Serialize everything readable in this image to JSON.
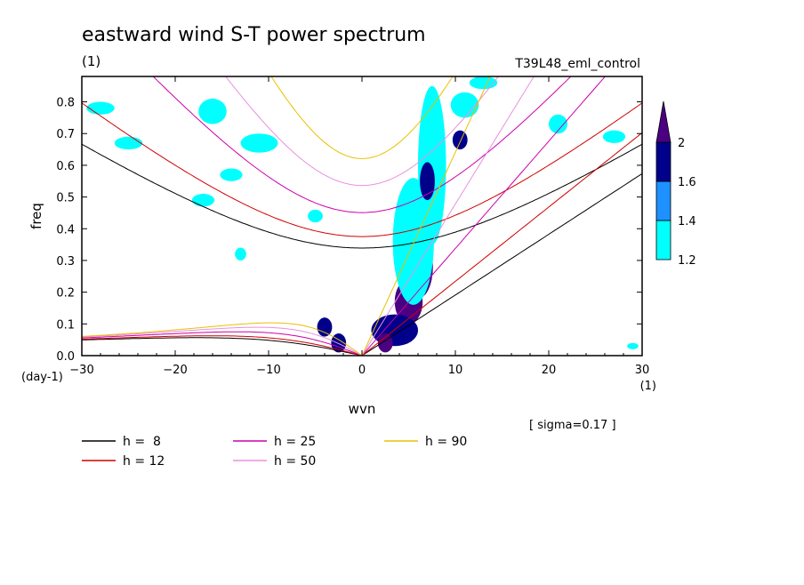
{
  "chart_data": {
    "type": "contour",
    "title": "eastward wind S-T power spectrum",
    "unit_label": "(1)",
    "run_label": "T39L48_eml_control",
    "xlabel": "wvn",
    "ylabel": "freq",
    "x_unit": "(1)",
    "y_unit": "(day-1)",
    "xlim": [
      -30,
      30
    ],
    "ylim": [
      0,
      0.88
    ],
    "x_ticks": [
      -30,
      -20,
      -10,
      0,
      10,
      20,
      30
    ],
    "x_tick_labels": [
      "−30",
      "−20",
      "−10",
      "0",
      "10",
      "20",
      "30"
    ],
    "y_ticks": [
      0,
      0.1,
      0.2,
      0.3,
      0.4,
      0.5,
      0.6,
      0.7,
      0.8
    ],
    "y_tick_labels": [
      "0.0",
      "0.1",
      "0.2",
      "0.3",
      "0.4",
      "0.5",
      "0.6",
      "0.7",
      "0.8"
    ],
    "sigma_note": "[ sigma=0.17 ]",
    "colorbar": {
      "levels": [
        1.2,
        1.4,
        1.6,
        2
      ],
      "level_labels": [
        "1.2",
        "1.4",
        "1.6",
        "2"
      ],
      "colors": [
        "#00ffff",
        "#1e90ff",
        "#00008b",
        "#4b0082"
      ]
    },
    "dispersion_curves": [
      {
        "label": "h =  8",
        "h": 8,
        "color": "#000000"
      },
      {
        "label": "h = 12",
        "h": 12,
        "color": "#d00000"
      },
      {
        "label": "h = 25",
        "h": 25,
        "color": "#cc00aa"
      },
      {
        "label": "h = 50",
        "h": 50,
        "color": "#e890e0"
      },
      {
        "label": "h = 90",
        "h": 90,
        "color": "#e8c000"
      }
    ],
    "spectral_peaks": [
      {
        "wvn": 5.0,
        "freq": 0.17,
        "rx": 1.5,
        "ry": 0.07,
        "level": 2
      },
      {
        "wvn": 6.0,
        "freq": 0.28,
        "rx": 1.6,
        "ry": 0.1,
        "level": 2
      },
      {
        "wvn": 6.8,
        "freq": 0.42,
        "rx": 1.2,
        "ry": 0.08,
        "level": 2
      },
      {
        "wvn": 5.5,
        "freq": 0.36,
        "rx": 2.2,
        "ry": 0.2,
        "level": 1.2
      },
      {
        "wvn": 7.5,
        "freq": 0.6,
        "rx": 1.5,
        "ry": 0.25,
        "level": 1.2
      },
      {
        "wvn": 7.0,
        "freq": 0.55,
        "rx": 0.8,
        "ry": 0.06,
        "level": 1.6
      },
      {
        "wvn": 3.5,
        "freq": 0.08,
        "rx": 2.5,
        "ry": 0.05,
        "level": 1.6
      },
      {
        "wvn": 2.5,
        "freq": 0.04,
        "rx": 0.8,
        "ry": 0.03,
        "level": 2
      },
      {
        "wvn": -4,
        "freq": 0.09,
        "rx": 0.8,
        "ry": 0.03,
        "level": 1.6
      },
      {
        "wvn": -2.5,
        "freq": 0.04,
        "rx": 0.8,
        "ry": 0.03,
        "level": 1.6
      },
      {
        "wvn": -11,
        "freq": 0.67,
        "rx": 2.0,
        "ry": 0.03,
        "level": 1.2
      },
      {
        "wvn": -16,
        "freq": 0.77,
        "rx": 1.5,
        "ry": 0.04,
        "level": 1.2
      },
      {
        "wvn": -17,
        "freq": 0.49,
        "rx": 1.2,
        "ry": 0.02,
        "level": 1.2
      },
      {
        "wvn": -14,
        "freq": 0.57,
        "rx": 1.2,
        "ry": 0.02,
        "level": 1.2
      },
      {
        "wvn": -25,
        "freq": 0.67,
        "rx": 1.5,
        "ry": 0.02,
        "level": 1.2
      },
      {
        "wvn": -28,
        "freq": 0.78,
        "rx": 1.5,
        "ry": 0.02,
        "level": 1.2
      },
      {
        "wvn": 11,
        "freq": 0.79,
        "rx": 1.5,
        "ry": 0.04,
        "level": 1.2
      },
      {
        "wvn": 13,
        "freq": 0.86,
        "rx": 1.5,
        "ry": 0.02,
        "level": 1.2
      },
      {
        "wvn": 10.5,
        "freq": 0.68,
        "rx": 0.8,
        "ry": 0.03,
        "level": 1.6
      },
      {
        "wvn": 21,
        "freq": 0.73,
        "rx": 1.0,
        "ry": 0.03,
        "level": 1.2
      },
      {
        "wvn": 27,
        "freq": 0.69,
        "rx": 1.2,
        "ry": 0.02,
        "level": 1.2
      },
      {
        "wvn": -5,
        "freq": 0.44,
        "rx": 0.8,
        "ry": 0.02,
        "level": 1.2
      },
      {
        "wvn": -13,
        "freq": 0.32,
        "rx": 0.6,
        "ry": 0.02,
        "level": 1.2
      },
      {
        "wvn": 29,
        "freq": 0.03,
        "rx": 0.6,
        "ry": 0.01,
        "level": 1.2
      }
    ]
  }
}
